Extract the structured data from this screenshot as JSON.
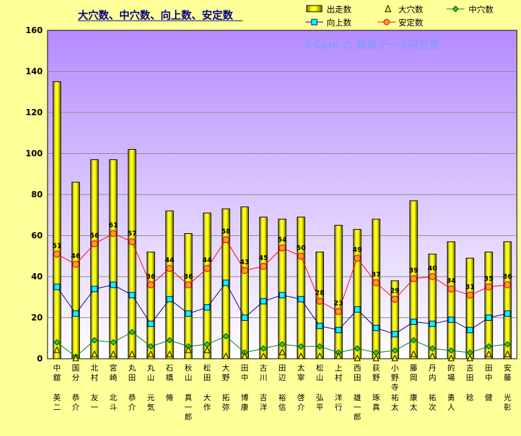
{
  "chart_data": {
    "type": "bar",
    "title": "大穴数、中穴数、向上数、安定数",
    "watermark": "©Cam の 競馬データ研究室",
    "ylim": [
      0,
      160
    ],
    "yticks": [
      0,
      20,
      40,
      60,
      80,
      100,
      120,
      140,
      160
    ],
    "grid": true,
    "legend_position": "top-right",
    "categories": [
      [
        "中舘",
        "英二"
      ],
      [
        "国分",
        "恭介"
      ],
      [
        "北村",
        "友一"
      ],
      [
        "宮崎",
        "北斗"
      ],
      [
        "丸田",
        "恭介"
      ],
      [
        "丸山",
        "元気"
      ],
      [
        "石橋",
        "脩"
      ],
      [
        "秋山",
        "真一郎"
      ],
      [
        "松田",
        "大作"
      ],
      [
        "大野",
        "拓弥"
      ],
      [
        "田中",
        "博康"
      ],
      [
        "古川",
        "吉洋"
      ],
      [
        "田辺",
        "裕信"
      ],
      [
        "太宰",
        "啓介"
      ],
      [
        "松山",
        "弘平"
      ],
      [
        "上村",
        "洋行"
      ],
      [
        "西田",
        "雄一郎"
      ],
      [
        "荻野",
        "琢真"
      ],
      [
        "小野寺",
        "祐太"
      ],
      [
        "藤岡",
        "康太"
      ],
      [
        "丹内",
        "祐次"
      ],
      [
        "的場",
        "勇人"
      ],
      [
        "吉田",
        "稔"
      ],
      [
        "田中",
        "健"
      ],
      [
        "安藤",
        "光彰"
      ]
    ],
    "series": [
      {
        "name": "出走数",
        "kind": "bar",
        "color": "#ffff00",
        "values": [
          135,
          86,
          97,
          97,
          102,
          52,
          72,
          61,
          71,
          73,
          74,
          69,
          68,
          69,
          52,
          65,
          63,
          68,
          38,
          77,
          51,
          57,
          49,
          52,
          57
        ]
      },
      {
        "name": "大穴数",
        "kind": "marker-triangle",
        "color": "#ffff00",
        "values": [
          4,
          0,
          2,
          2,
          2,
          2,
          2,
          4,
          4,
          1,
          1,
          1,
          3,
          1,
          1,
          1,
          0,
          0,
          0,
          2,
          1,
          0,
          0,
          2,
          2
        ]
      },
      {
        "name": "中穴数",
        "kind": "line-diamond",
        "color": "#008000",
        "values": [
          8,
          1,
          9,
          8,
          13,
          6,
          9,
          6,
          7,
          11,
          3,
          5,
          7,
          6,
          6,
          3,
          5,
          3,
          4,
          9,
          5,
          4,
          3,
          6,
          7
        ]
      },
      {
        "name": "向上数",
        "kind": "line-square",
        "color": "#000080",
        "marker": "#00ffff",
        "values": [
          35,
          22,
          34,
          36,
          31,
          17,
          29,
          22,
          25,
          37,
          20,
          28,
          31,
          29,
          16,
          14,
          24,
          15,
          12,
          18,
          17,
          19,
          14,
          20,
          22
        ]
      },
      {
        "name": "安定数",
        "kind": "line-circle",
        "color": "#ff0000",
        "marker": "#ff9933",
        "values": [
          51,
          46,
          56,
          61,
          57,
          36,
          44,
          36,
          44,
          58,
          43,
          45,
          54,
          50,
          28,
          23,
          49,
          37,
          29,
          39,
          40,
          34,
          31,
          35,
          36
        ]
      }
    ]
  }
}
